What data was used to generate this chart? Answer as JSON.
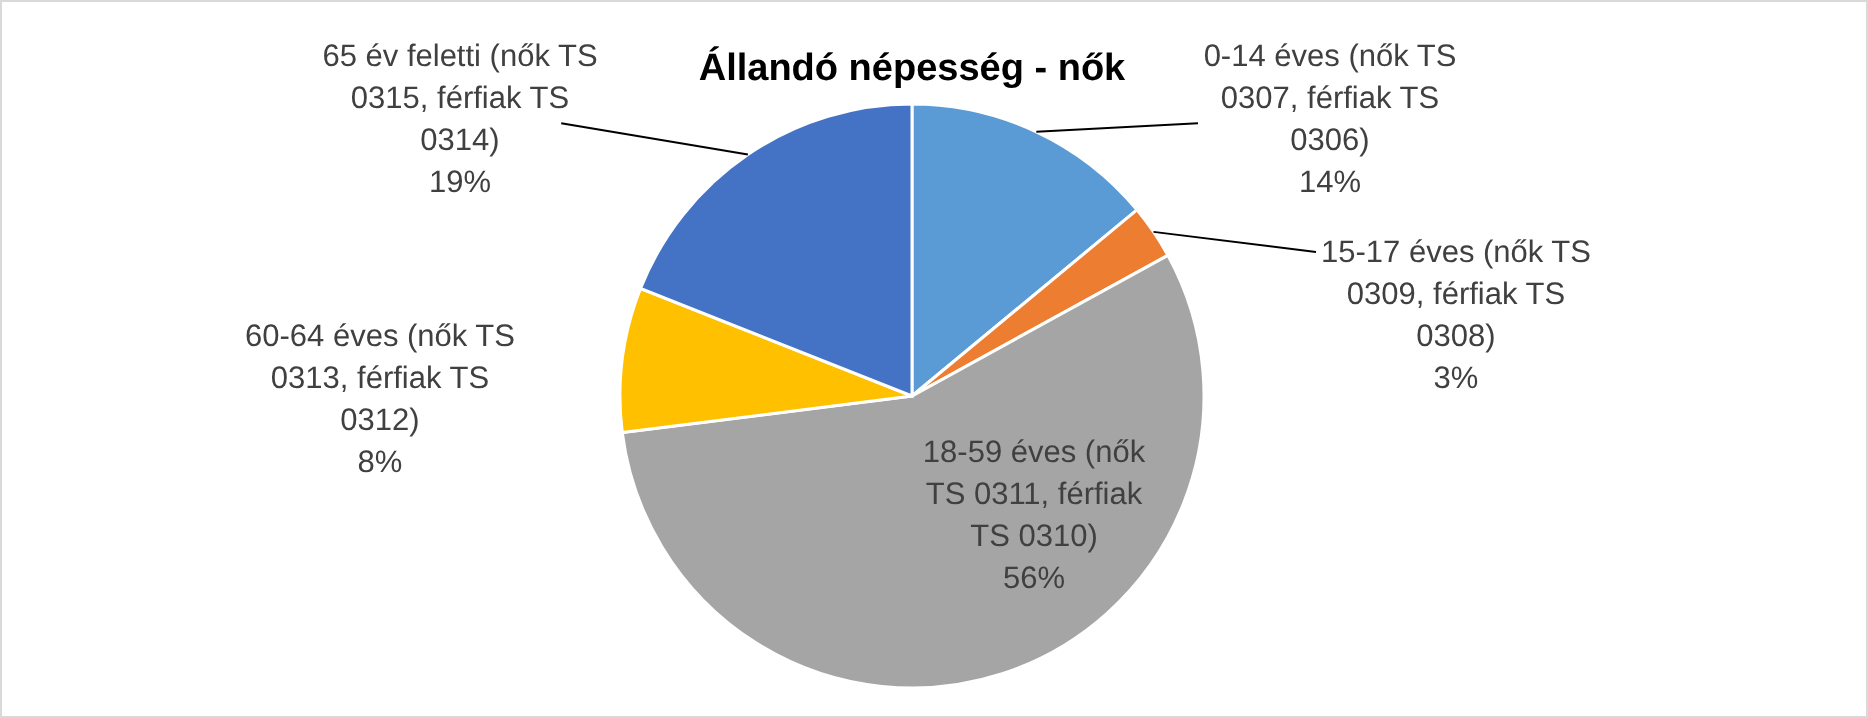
{
  "chart_data": {
    "type": "pie",
    "title": "Állandó népesség - nők",
    "categories": [
      "0-14 éves (nők TS 0307, férfiak TS 0306)",
      "15-17 éves (nők TS 0309, férfiak TS 0308)",
      "18-59 éves (nők TS 0311, férfiak TS 0310)",
      "60-64 éves (nők TS 0313, férfiak TS 0312)",
      "65 év feletti (nők TS 0315, férfiak TS 0314)"
    ],
    "values": [
      14,
      3,
      56,
      8,
      19
    ],
    "value_labels": [
      "14%",
      "3%",
      "56%",
      "8%",
      "19%"
    ],
    "colors": [
      "#5b9bd5",
      "#ed7d31",
      "#a5a5a5",
      "#ffc000",
      "#4472c4"
    ],
    "legend": false
  }
}
